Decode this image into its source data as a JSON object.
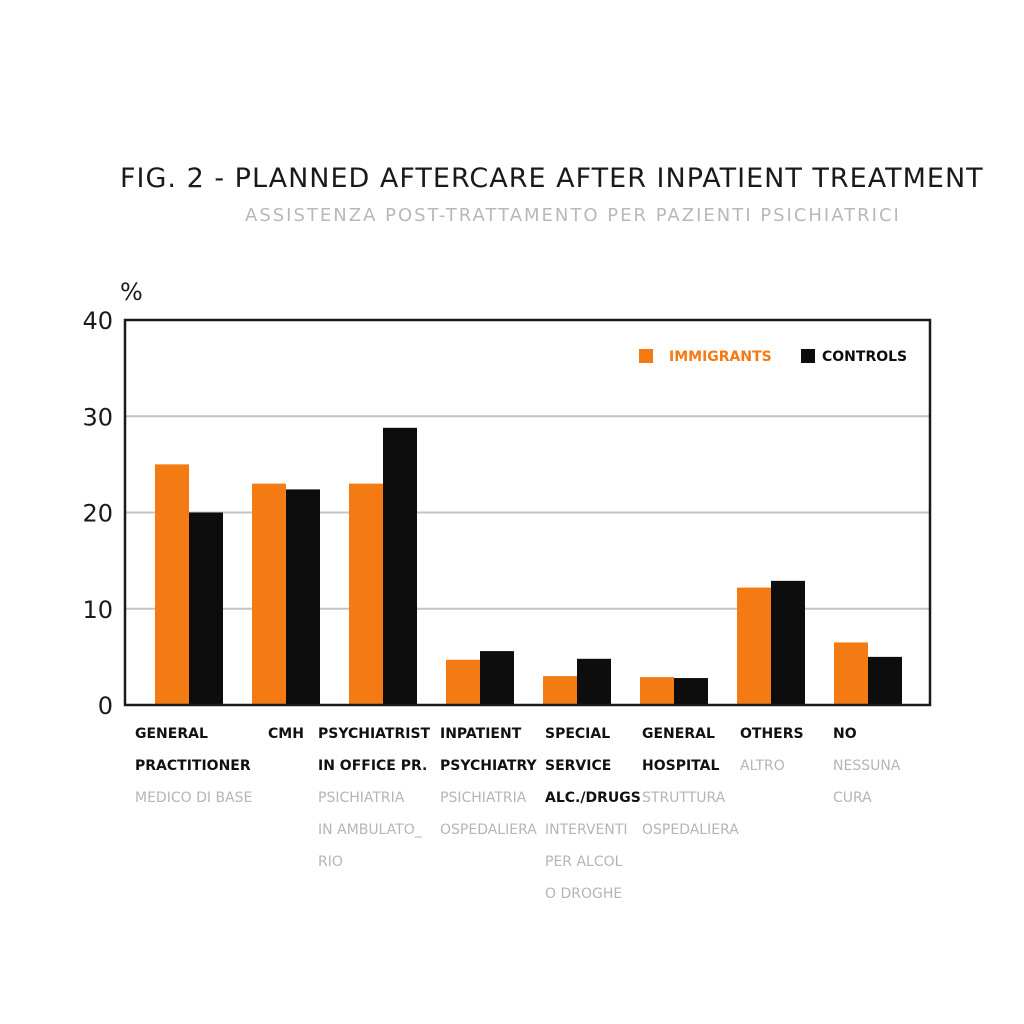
{
  "title": "FIG. 2 - PLANNED AFTERCARE AFTER INPATIENT TREATMENT",
  "subtitle": "ASSISTENZA POST-TRATTAMENTO PER PAZIENTI PSICHIATRICI",
  "colors": {
    "immigrants": "#f47a14",
    "controls": "#0d0d0d",
    "grid": "#c4c4c4",
    "subtitle": "#b8b8b8"
  },
  "chart_data": {
    "type": "bar",
    "ylabel": "%",
    "ylim": [
      0,
      40
    ],
    "yticks": [
      "0",
      "10",
      "20",
      "30",
      "40"
    ],
    "grid": true,
    "legend_position": "top-right",
    "categories": [
      {
        "label_lines": [
          "GENERAL",
          "PRACTITIONER"
        ],
        "it_lines": [
          "MEDICO DI BASE"
        ]
      },
      {
        "label_lines": [
          "CMH"
        ],
        "it_lines": []
      },
      {
        "label_lines": [
          "PSYCHIATRIST",
          "IN OFFICE PR."
        ],
        "it_lines": [
          "PSICHIATRIA",
          "IN AMBULATO_",
          "RIO"
        ]
      },
      {
        "label_lines": [
          "INPATIENT",
          "PSYCHIATRY"
        ],
        "it_lines": [
          "PSICHIATRIA",
          "OSPEDALIERA"
        ]
      },
      {
        "label_lines": [
          "SPECIAL",
          "SERVICE",
          "ALC./DRUGS"
        ],
        "it_lines": [
          "INTERVENTI",
          "PER ALCOL",
          "O DROGHE"
        ]
      },
      {
        "label_lines": [
          "GENERAL",
          "HOSPITAL"
        ],
        "it_lines": [
          "STRUTTURA",
          "OSPEDALIERA"
        ]
      },
      {
        "label_lines": [
          "OTHERS"
        ],
        "it_lines": [
          "ALTRO"
        ]
      },
      {
        "label_lines": [
          "NO"
        ],
        "it_lines": [
          "NESSUNA",
          "CURA"
        ]
      }
    ],
    "series": [
      {
        "name": "IMMIGRANTS",
        "values": [
          25.0,
          23.0,
          23.0,
          4.7,
          3.0,
          2.9,
          12.2,
          6.5
        ]
      },
      {
        "name": "CONTROLS",
        "values": [
          20.0,
          22.4,
          28.8,
          5.6,
          4.8,
          2.8,
          12.9,
          5.0
        ]
      }
    ]
  }
}
